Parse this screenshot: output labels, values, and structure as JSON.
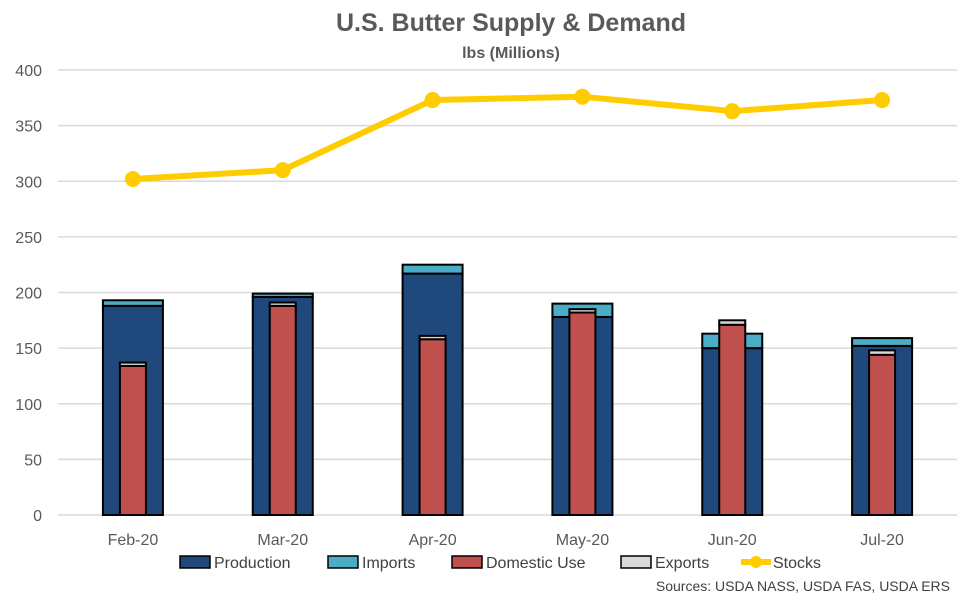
{
  "chart_data": {
    "type": "bar",
    "title": "U.S. Butter Supply & Demand",
    "subtitle": "lbs (Millions)",
    "xlabel": "",
    "ylabel": "",
    "ylim": [
      0,
      400
    ],
    "yticks": [
      0,
      50,
      100,
      150,
      200,
      250,
      300,
      350,
      400
    ],
    "grid": true,
    "categories": [
      "Feb-20",
      "Mar-20",
      "Apr-20",
      "May-20",
      "Jun-20",
      "Jul-20"
    ],
    "series": [
      {
        "name": "Production",
        "type": "stacked-bar-supply",
        "color": "#1F497D",
        "values": [
          188,
          196,
          217,
          178,
          150,
          152
        ]
      },
      {
        "name": "Imports",
        "type": "stacked-bar-supply",
        "color": "#4BACC6",
        "values": [
          5,
          3,
          8,
          12,
          13,
          7
        ]
      },
      {
        "name": "Domestic Use",
        "type": "stacked-bar-demand",
        "color": "#C0504D",
        "values": [
          134,
          188,
          158,
          182,
          171,
          144
        ]
      },
      {
        "name": "Exports",
        "type": "stacked-bar-demand",
        "color": "#D9D9D9",
        "values": [
          3,
          3,
          3,
          3,
          4,
          4
        ]
      },
      {
        "name": "Stocks",
        "type": "line",
        "color": "#FFCC00",
        "values": [
          302,
          310,
          373,
          376,
          363,
          373
        ]
      }
    ],
    "legend_position": "bottom",
    "source_note": "Sources: USDA NASS, USDA FAS, USDA ERS"
  }
}
